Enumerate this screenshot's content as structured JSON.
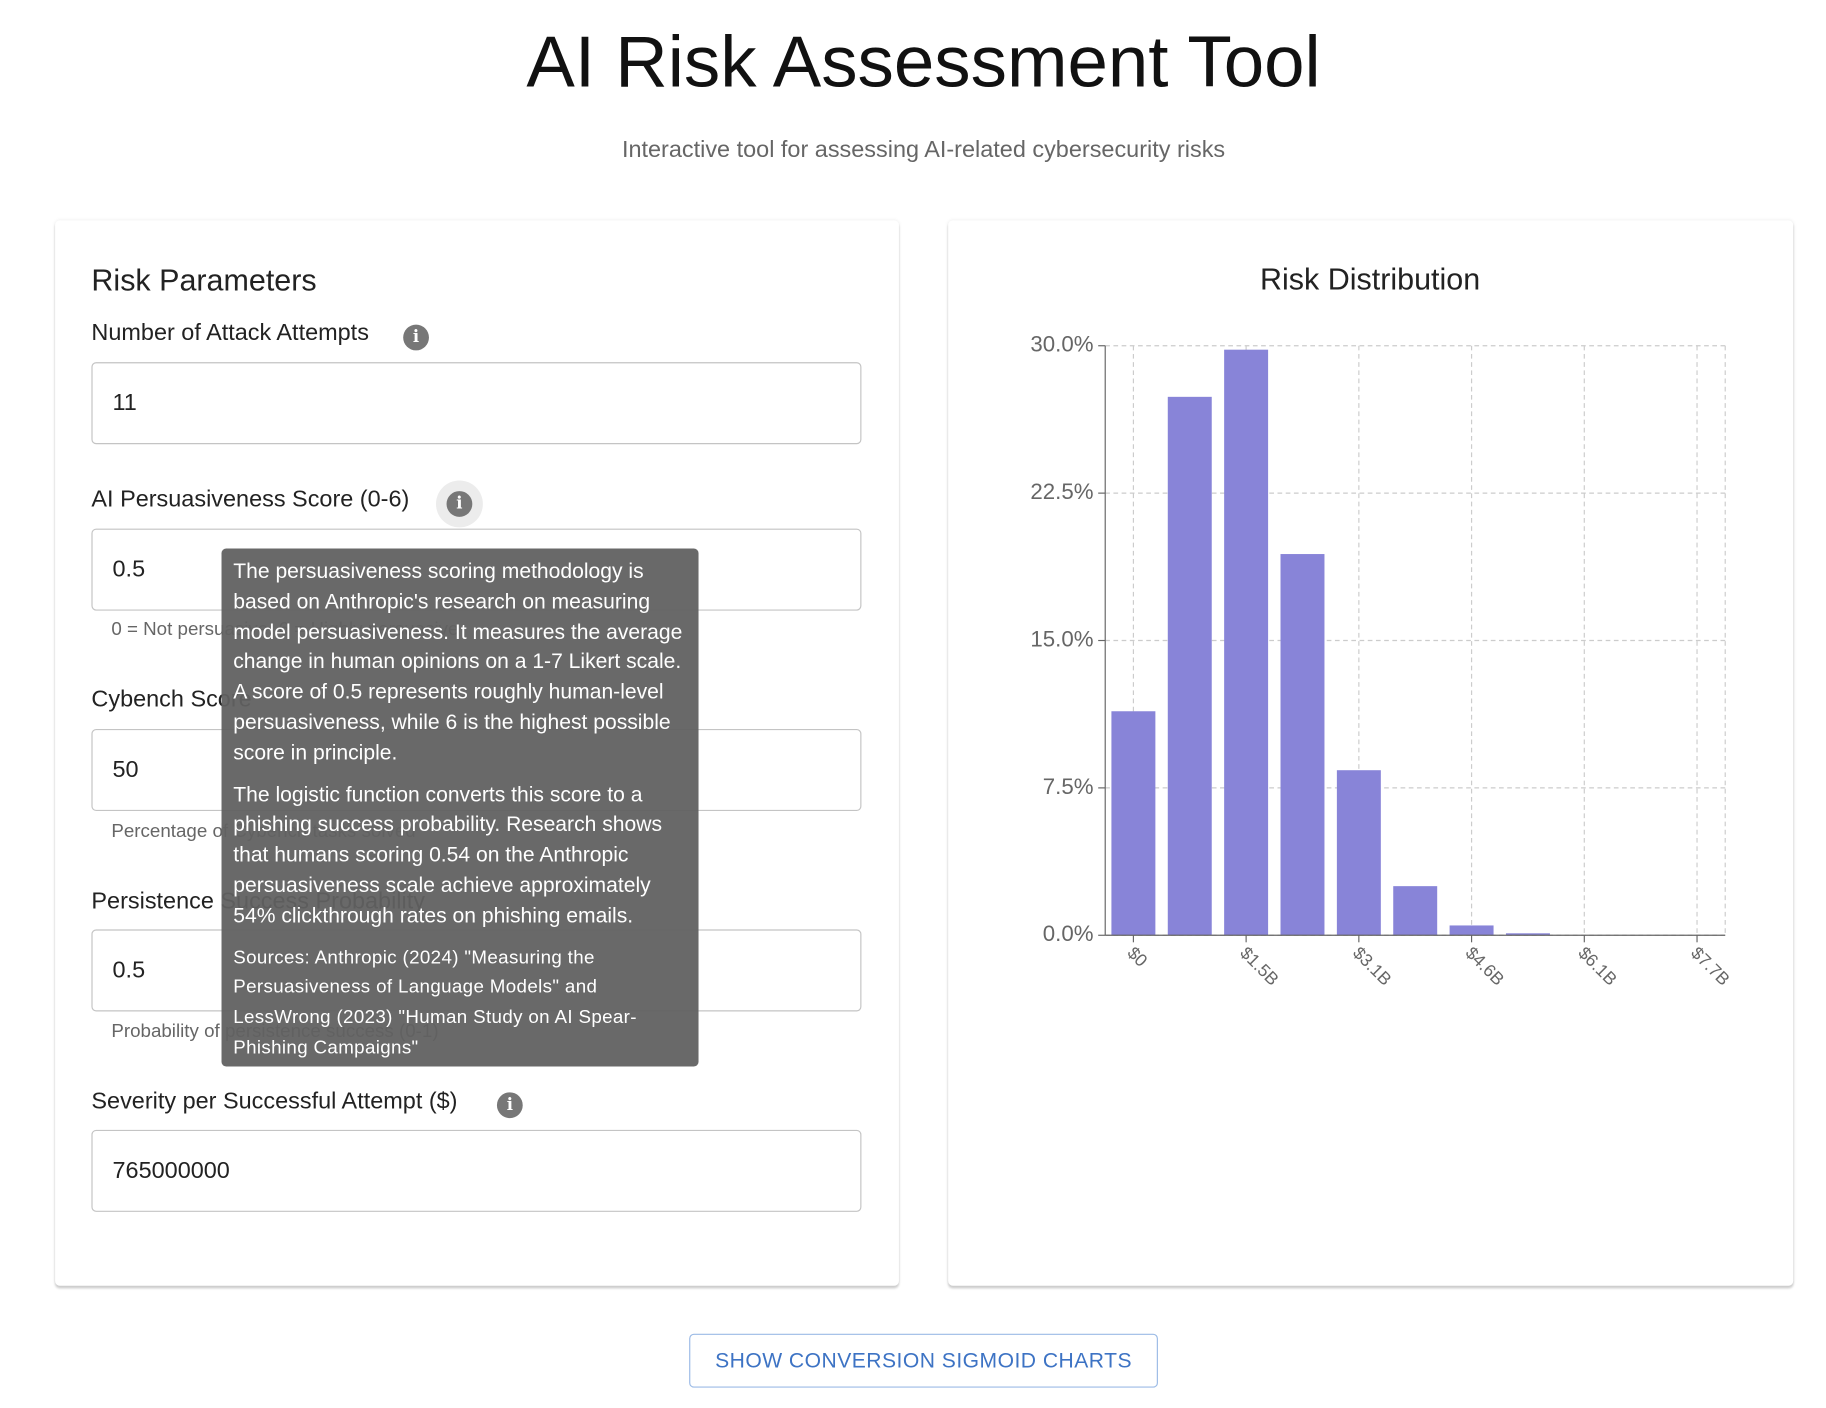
{
  "header": {
    "title": "AI Risk Assessment Tool",
    "subtitle": "Interactive tool for assessing AI-related cybersecurity risks"
  },
  "parameters": {
    "title": "Risk Parameters",
    "fields": [
      {
        "label": "Number of Attack Attempts",
        "value": 11
      },
      {
        "label": "AI Persuasiveness Score (0-6)",
        "value": 0.5,
        "helper": "0 = Not persuasive, 6 = Highly persuasive"
      },
      {
        "label": "Cybench Score",
        "value": 50,
        "helper": "Percentage of Cybench tasks solved"
      },
      {
        "label": "Persistence Success Probability",
        "value": 0.5,
        "helper": "Probability of persistence success (0-1)"
      },
      {
        "label": "Severity per Successful Attempt ($)",
        "value": 765000000
      }
    ]
  },
  "tooltip": {
    "paragraphs": [
      "The persuasiveness scoring methodology is based on Anthropic's research on measuring model persuasiveness. It measures the average change in human opinions on a 1-7 Likert scale. A score of 0.5 represents roughly human-level persuasiveness, while 6 is the highest possible score in principle.",
      "The logistic function converts this score to a phishing success probability. Research shows that humans scoring 0.54 on the Anthropic persuasiveness scale achieve approximately 54% clickthrough rates on phishing emails."
    ],
    "sources": "Sources: Anthropic (2024) \"Measuring the Persuasiveness of Language Models\" and LessWrong (2023) \"Human Study on AI Spear-Phishing Campaigns\""
  },
  "chart_data": {
    "type": "bar",
    "title": "Risk Distribution",
    "color": "#8884d8",
    "grid": true,
    "categories": [
      "$0",
      null,
      "$1.5B",
      null,
      "$3.1B",
      null,
      "$4.6B",
      null,
      "$6.1B",
      null,
      "$7.7B"
    ],
    "values": [
      11.4,
      27.4,
      29.8,
      19.4,
      8.4,
      2.5,
      0.5,
      0.1,
      0,
      0,
      0
    ],
    "ylim": [
      0,
      30
    ],
    "yticks": [
      {
        "value": 0,
        "label": "0.0%"
      },
      {
        "value": 7.5,
        "label": "7.5%"
      },
      {
        "value": 15,
        "label": "15.0%"
      },
      {
        "value": 22.5,
        "label": "22.5%"
      },
      {
        "value": 30,
        "label": "30.0%"
      }
    ]
  },
  "button": {
    "label": "SHOW CONVERSION SIGMOID CHARTS"
  }
}
